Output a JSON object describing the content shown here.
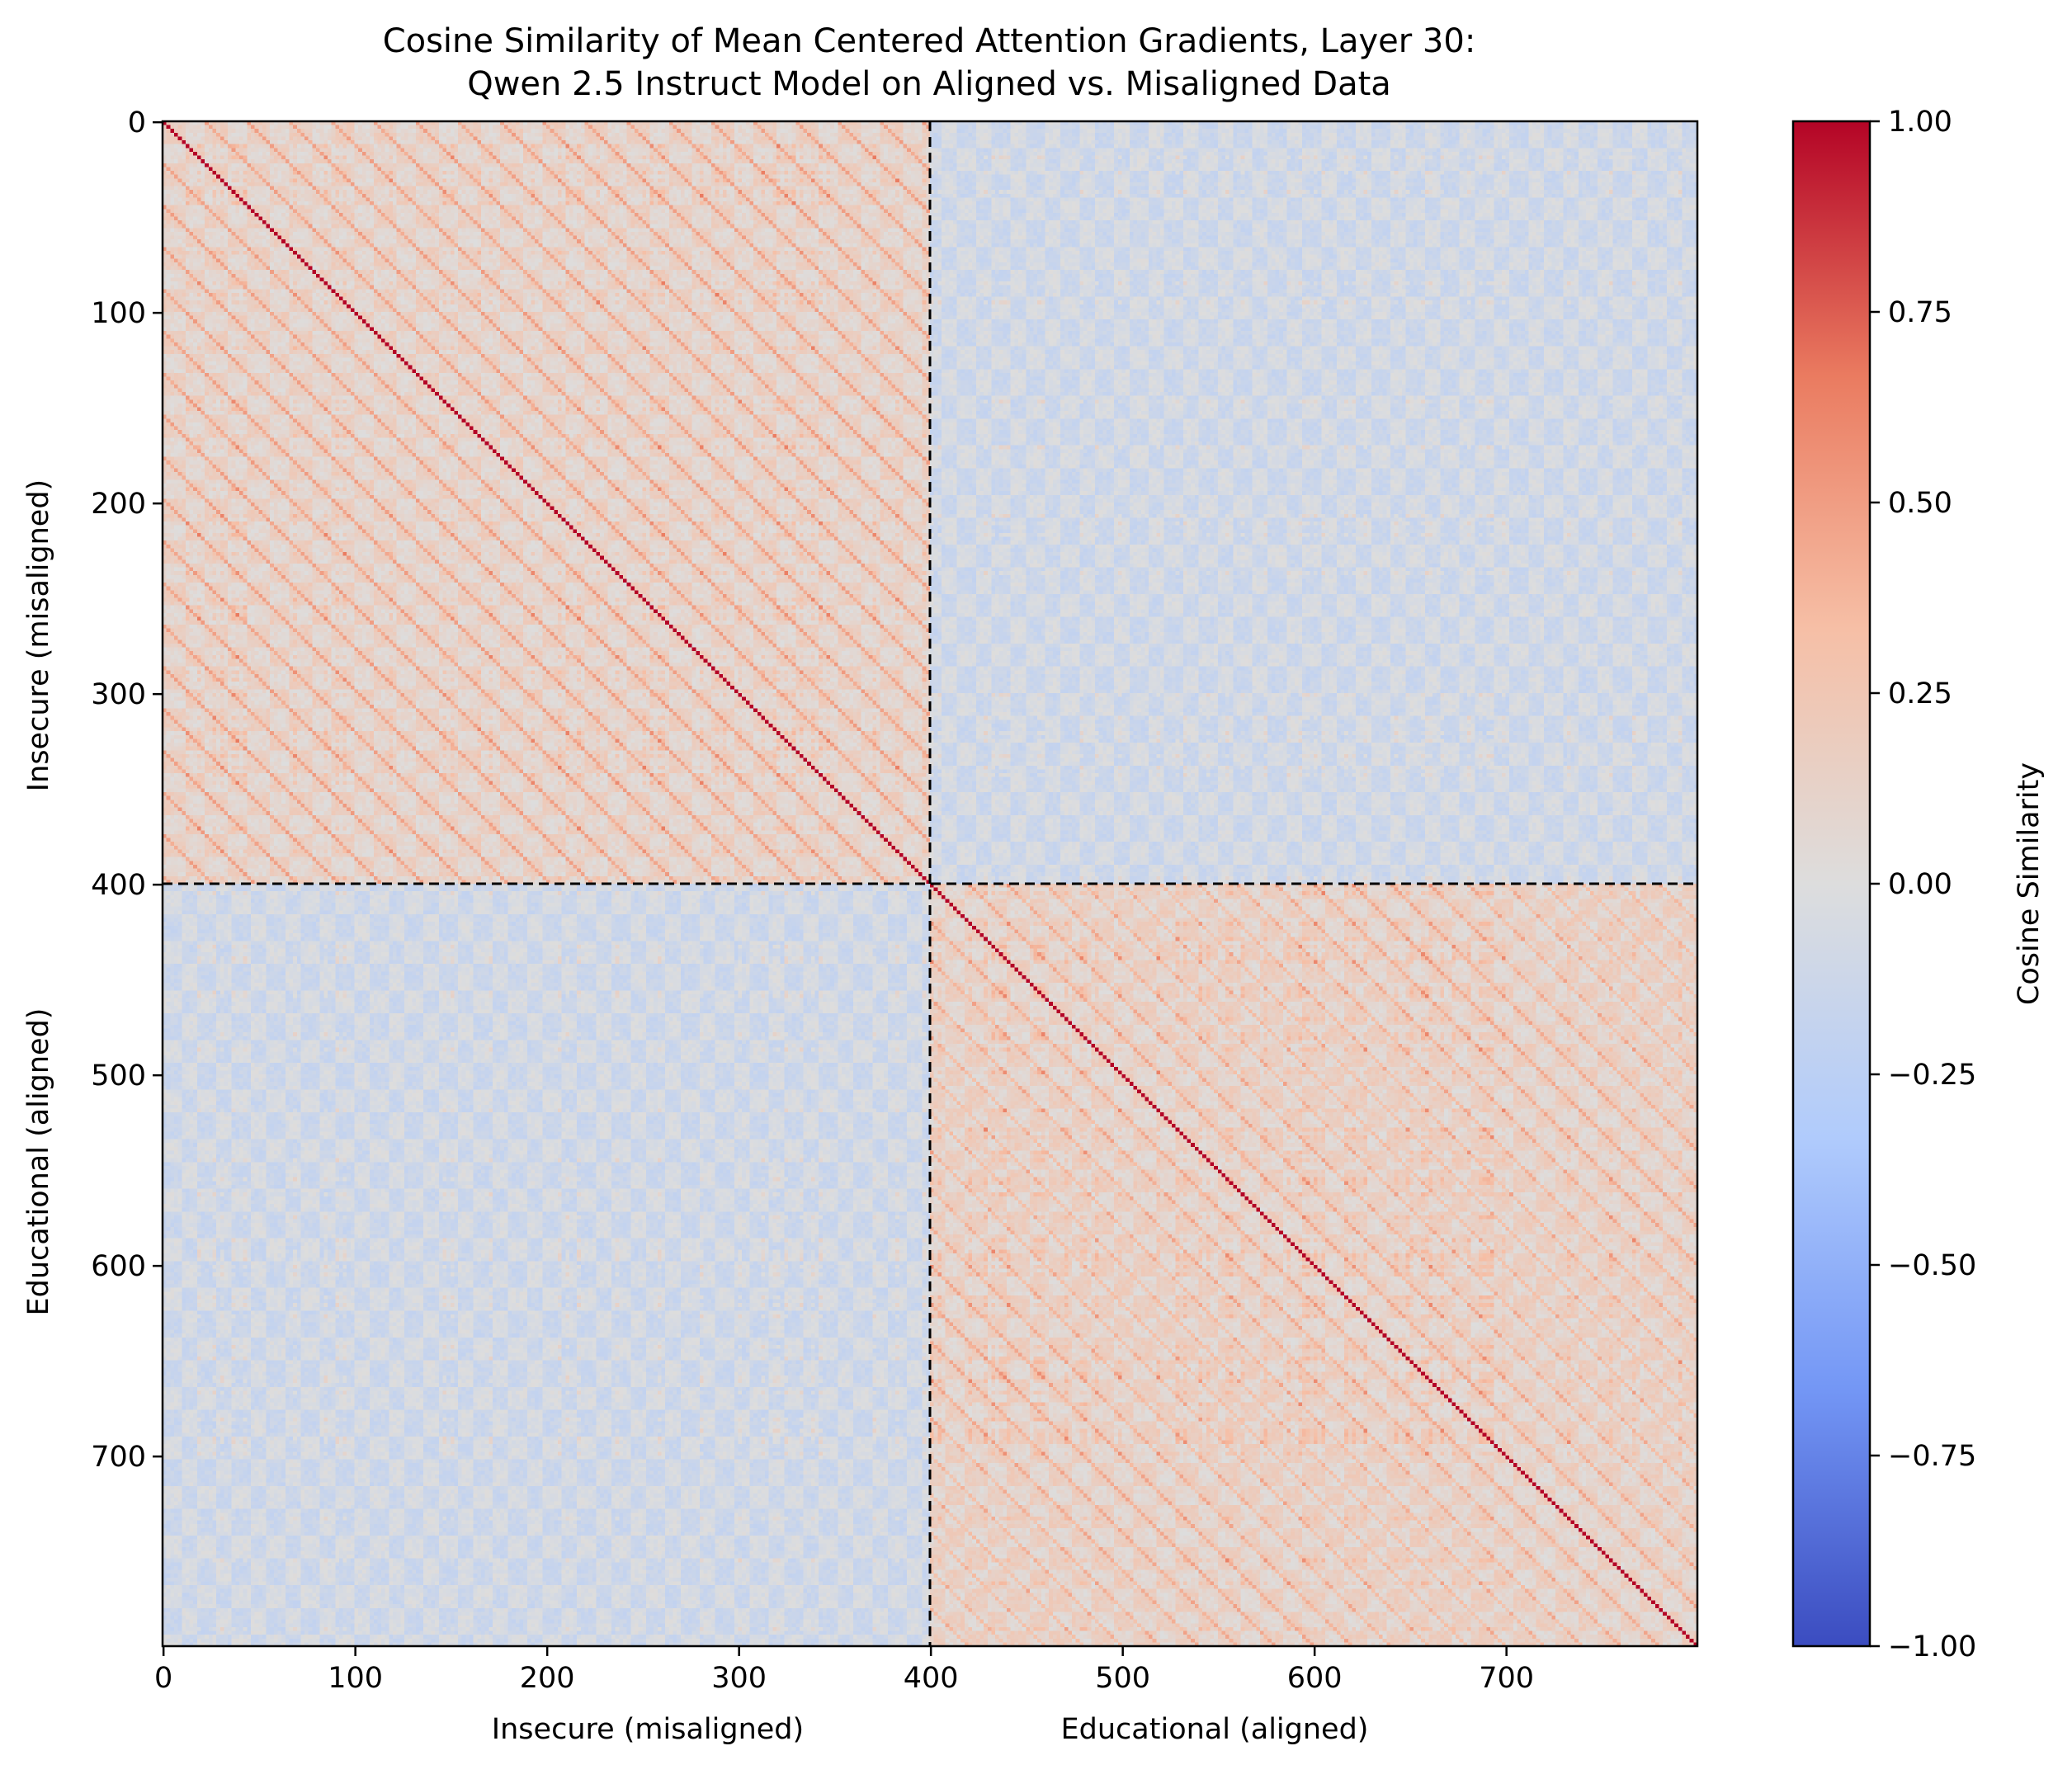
{
  "chart_data": {
    "type": "heatmap",
    "title_line1": "Cosine Similarity of Mean Centered Attention Gradients, Layer 30:",
    "title_line2": "Qwen 2.5 Instruct Model on Aligned vs. Misaligned Data",
    "ylabel_top": "Insecure (misaligned)",
    "ylabel_bottom": "Educational (aligned)",
    "xlabel_left": "Insecure (misaligned)",
    "xlabel_right": "Educational (aligned)",
    "x_ticks": [
      "0",
      "100",
      "200",
      "300",
      "400",
      "500",
      "600",
      "700"
    ],
    "y_ticks": [
      "0",
      "100",
      "200",
      "300",
      "400",
      "500",
      "600",
      "700"
    ],
    "x_tick_values": [
      0,
      100,
      200,
      300,
      400,
      500,
      600,
      700
    ],
    "y_tick_values": [
      0,
      100,
      200,
      300,
      400,
      500,
      600,
      700
    ],
    "n": 800,
    "split_index": 400,
    "colorbar_label": "Cosine Similarity",
    "colorbar_ticks": [
      "1.00",
      "0.75",
      "0.50",
      "0.25",
      "0.00",
      "−0.25",
      "−0.50",
      "−0.75",
      "−1.00"
    ],
    "colorbar_values": [
      1.0,
      0.75,
      0.5,
      0.25,
      0.0,
      -0.25,
      -0.5,
      -0.75,
      -1.0
    ],
    "vmin": -1.0,
    "vmax": 1.0,
    "colormap": "coolwarm",
    "colormap_stops": [
      "#3b4cc0",
      "#7396f5",
      "#b0cbfc",
      "#dddddd",
      "#f6bfa6",
      "#ea7b60",
      "#b40426"
    ],
    "blocks": [
      {
        "name": "Insecure vs Insecure",
        "rows": [
          0,
          400
        ],
        "cols": [
          0,
          400
        ],
        "typical_value": 0.1,
        "pattern_peak": 0.4
      },
      {
        "name": "Insecure vs Educational",
        "rows": [
          0,
          400
        ],
        "cols": [
          400,
          800
        ],
        "typical_value": -0.05
      },
      {
        "name": "Educational vs Insecure",
        "rows": [
          400,
          800
        ],
        "cols": [
          0,
          400
        ],
        "typical_value": -0.05
      },
      {
        "name": "Educational vs Educational",
        "rows": [
          400,
          800
        ],
        "cols": [
          400,
          800
        ],
        "typical_value": 0.1,
        "pattern_peak": 0.35
      }
    ],
    "diagonal_value": 1.0,
    "divider_style": "dashed black lines at index 400"
  }
}
